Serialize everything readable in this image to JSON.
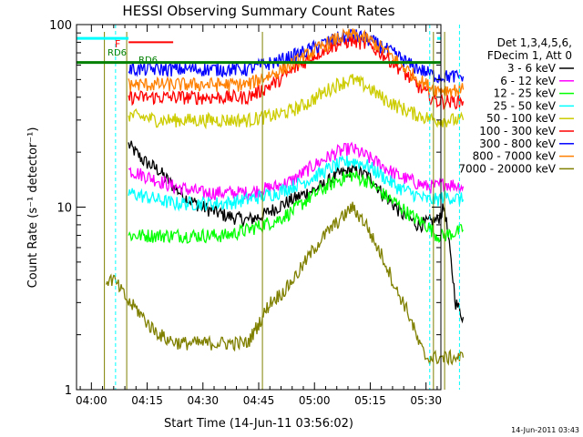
{
  "chart_data": {
    "type": "line",
    "title": "HESSI Observing Summary Count Rates",
    "xlabel": "Start Time (14-Jun-11 03:56:02)",
    "ylabel": "Count Rate (s⁻¹ detector⁻¹)",
    "yscale": "log",
    "ylim": [
      1,
      100
    ],
    "xlim_min": [
      0,
      98
    ],
    "grid": false,
    "x_ticks": [
      "04:00",
      "04:15",
      "04:30",
      "04:45",
      "05:00",
      "05:15",
      "05:30"
    ],
    "y_ticks": [
      "1",
      "10",
      "100"
    ],
    "legend_position": "right",
    "legend_header": [
      "Det 1,3,4,5,6,",
      "FDecim 1, Att 0"
    ],
    "annotations": {
      "F": "F",
      "RD6_left": "RD6",
      "RD6_mid": "RD6"
    },
    "footer": "14-Jun-2011 03:43",
    "series": [
      {
        "name": "3 - 6 keV",
        "color": "#000000",
        "x": [
          14,
          18,
          22,
          26,
          30,
          34,
          40,
          46,
          50,
          54,
          58,
          62,
          66,
          70,
          74,
          78,
          80,
          82,
          84,
          88,
          92,
          97,
          99,
          102,
          104
        ],
        "y": [
          22,
          18,
          16,
          13,
          11,
          10,
          9,
          8.5,
          9,
          10,
          11,
          12,
          13,
          15,
          16,
          15,
          14,
          12,
          11,
          9,
          8,
          8.5,
          10,
          3,
          2.5
        ]
      },
      {
        "name": "6 - 12 keV",
        "color": "#ff00ff",
        "x": [
          14,
          18,
          22,
          26,
          30,
          34,
          40,
          46,
          50,
          54,
          58,
          62,
          66,
          70,
          74,
          78,
          82,
          86,
          90,
          94,
          97,
          99,
          104
        ],
        "y": [
          16,
          15,
          14,
          13,
          12.5,
          12,
          12,
          12,
          12.5,
          13,
          14,
          16,
          18,
          20,
          21,
          19,
          17,
          15,
          14,
          13,
          13,
          13.5,
          13
        ]
      },
      {
        "name": "12 - 25 keV",
        "color": "#00ff00",
        "x": [
          14,
          18,
          22,
          26,
          30,
          34,
          40,
          46,
          50,
          54,
          58,
          62,
          66,
          70,
          74,
          78,
          82,
          86,
          90,
          94,
          97,
          99,
          104
        ],
        "y": [
          7,
          7,
          7,
          7,
          7,
          7,
          7,
          7.5,
          8,
          8.5,
          9.5,
          11,
          12.5,
          14,
          15,
          14,
          12,
          10.5,
          9,
          8,
          7,
          7,
          7.5
        ]
      },
      {
        "name": "25 - 50 keV",
        "color": "#00ffff",
        "x": [
          14,
          18,
          22,
          26,
          30,
          34,
          40,
          46,
          50,
          54,
          58,
          62,
          66,
          70,
          74,
          78,
          82,
          86,
          90,
          94,
          97,
          99,
          104
        ],
        "y": [
          12,
          11.5,
          11,
          10.5,
          10.5,
          10.5,
          10.5,
          11,
          11.5,
          12,
          13,
          14,
          15.5,
          17,
          18,
          17,
          15,
          13,
          12,
          11,
          11,
          11.5,
          11
        ]
      },
      {
        "name": "50 - 100 keV",
        "color": "#cccc00",
        "x": [
          14,
          18,
          22,
          26,
          30,
          34,
          40,
          46,
          50,
          54,
          58,
          62,
          66,
          70,
          74,
          78,
          82,
          86,
          90,
          94,
          97,
          99,
          104
        ],
        "y": [
          32,
          31,
          30,
          30,
          30,
          30,
          30,
          30,
          31,
          32,
          34,
          37,
          42,
          47,
          50,
          46,
          40,
          36,
          33,
          31,
          30,
          30,
          30
        ]
      },
      {
        "name": "100 - 300 keV",
        "color": "#ff0000",
        "x": [
          14,
          18,
          22,
          26,
          30,
          34,
          40,
          46,
          50,
          54,
          58,
          62,
          66,
          70,
          74,
          78,
          82,
          86,
          90,
          94,
          97,
          99,
          104
        ],
        "y": [
          40,
          40,
          40,
          40,
          40,
          40,
          40,
          40,
          44,
          49,
          56,
          64,
          72,
          78,
          82,
          78,
          70,
          60,
          50,
          42,
          38,
          38,
          38
        ]
      },
      {
        "name": "300 - 800 keV",
        "color": "#0000ff",
        "x": [
          14,
          18,
          22,
          26,
          30,
          34,
          40,
          46,
          50,
          54,
          58,
          62,
          66,
          70,
          74,
          78,
          82,
          86,
          90,
          94,
          97,
          99,
          104
        ],
        "y": [
          57,
          57,
          57,
          57,
          57,
          57,
          57,
          57,
          60,
          63,
          67,
          72,
          78,
          84,
          88,
          84,
          76,
          68,
          60,
          55,
          52,
          52,
          52
        ]
      },
      {
        "name": "800 - 7000 keV",
        "color": "#ff8000",
        "x": [
          14,
          18,
          22,
          26,
          30,
          34,
          40,
          46,
          50,
          54,
          58,
          62,
          66,
          70,
          74,
          78,
          82,
          86,
          90,
          94,
          97,
          99,
          104
        ],
        "y": [
          47,
          47,
          47,
          47,
          47,
          47,
          47,
          47,
          51,
          55,
          61,
          68,
          76,
          84,
          88,
          84,
          75,
          64,
          54,
          47,
          44,
          44,
          44
        ]
      },
      {
        "name": "7000 - 20000 keV",
        "color": "#808000",
        "x": [
          8,
          10,
          12,
          14,
          16,
          20,
          24,
          28,
          30,
          34,
          38,
          40,
          42,
          44,
          46,
          50,
          52,
          56,
          60,
          64,
          68,
          72,
          74,
          76,
          78,
          80,
          82,
          84,
          86,
          88,
          90,
          92,
          94,
          96,
          98,
          100,
          102,
          104
        ],
        "y": [
          4,
          4,
          3.5,
          3,
          2.8,
          2.2,
          1.9,
          1.8,
          1.8,
          1.8,
          1.8,
          1.8,
          1.8,
          1.8,
          1.8,
          2.5,
          3,
          3.5,
          4.5,
          6,
          7.5,
          9,
          10,
          9,
          8,
          6.5,
          5.5,
          4.5,
          3.5,
          3,
          2.4,
          1.8,
          1.5,
          1.5,
          1.5,
          1.5,
          1.5,
          1.5
        ]
      }
    ]
  }
}
